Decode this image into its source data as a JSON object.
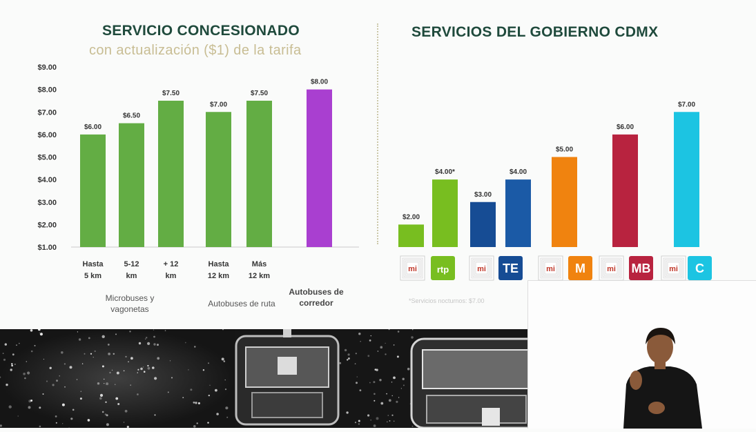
{
  "left_title": "SERVICIO CONCESIONADO",
  "left_subtitle": "con actualización ($1) de la tarifa",
  "right_title": "SERVICIOS DEL GOBIERNO CDMX",
  "right_note": "*Servicios nocturnos: $7.00",
  "category_labels": [
    {
      "text": "Microbuses y vagonetas",
      "bold": false
    },
    {
      "text": "Autobuses de ruta",
      "bold": false
    },
    {
      "text": "Autobuses de corredor",
      "bold": true
    }
  ],
  "colors": {
    "green": "#63ad44",
    "purple": "#a93fd0",
    "lime": "#78be20",
    "navy": "#164c94",
    "blue": "#1b5aa6",
    "orange": "#f0830f",
    "red": "#b8233f",
    "cyan": "#1cc4e2",
    "axis_text": "#333333",
    "title": "#1f4a3c",
    "subtitle": "#c8bd93"
  },
  "chart_data": [
    {
      "type": "bar",
      "ylim": [
        1,
        9
      ],
      "yticks": [
        "$1.00",
        "$2.00",
        "$3.00",
        "$4.00",
        "$5.00",
        "$6.00",
        "$7.00",
        "$8.00",
        "$9.00"
      ],
      "categories": [
        "Hasta 5 km",
        "5-12 km",
        "+ 12 km",
        "Hasta 12 km",
        "Más 12 km",
        ""
      ],
      "values": [
        6.0,
        6.5,
        7.5,
        7.0,
        7.5,
        8.0
      ],
      "labels": [
        "$6.00",
        "$6.50",
        "$7.50",
        "$7.00",
        "$7.50",
        "$8.00"
      ],
      "bar_colors": [
        "green",
        "green",
        "green",
        "green",
        "green",
        "purple"
      ]
    },
    {
      "type": "bar",
      "ylim": [
        1,
        9
      ],
      "values": [
        2.0,
        4.0,
        3.0,
        4.0,
        5.0,
        6.0,
        7.0
      ],
      "labels": [
        "$2.00",
        "$4.00*",
        "$3.00",
        "$4.00",
        "$5.00",
        "$6.00",
        "$7.00"
      ],
      "bar_colors": [
        "lime",
        "lime",
        "navy",
        "blue",
        "orange",
        "red",
        "cyan"
      ],
      "icons": [
        {
          "name": "mi-icon",
          "glyph": "mi"
        },
        {
          "name": "rtp-icon",
          "glyph": "rtp"
        },
        {
          "name": "mi-icon",
          "glyph": "mi"
        },
        {
          "name": "trolebus-icon",
          "glyph": "TE"
        },
        {
          "name": "mi-icon",
          "glyph": "mi"
        },
        {
          "name": "metro-icon",
          "glyph": "M"
        },
        {
          "name": "mi-icon",
          "glyph": "mi"
        },
        {
          "name": "metrobus-icon",
          "glyph": "MB"
        },
        {
          "name": "mi-icon",
          "glyph": "mi"
        },
        {
          "name": "cablebus-icon",
          "glyph": "C"
        }
      ]
    }
  ]
}
